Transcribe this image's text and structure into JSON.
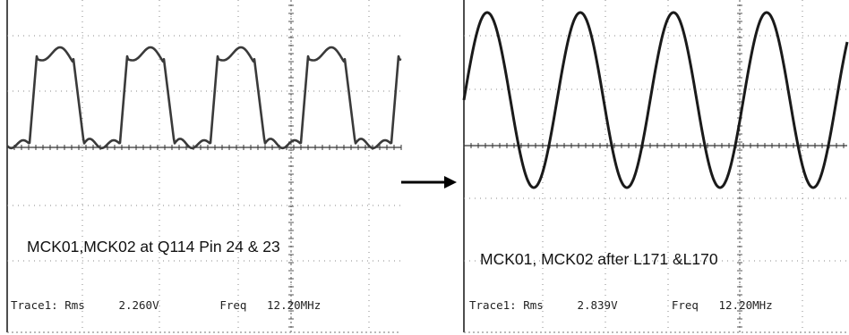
{
  "chart_data": [
    {
      "type": "line",
      "waveform": "square-ish",
      "caption": "MCK01,MCK02 at Q114 Pin 24 & 23",
      "readout": {
        "trace_label": "Trace1:",
        "rms_label": "Rms",
        "rms_value": "2.260V",
        "freq_label": "Freq",
        "freq_value": "12.20MHz"
      },
      "cycles_visible": 4.3,
      "grid": true,
      "stroke": "#3a3a3a"
    },
    {
      "type": "line",
      "waveform": "sine",
      "caption": "MCK01, MCK02 after L171 &L170",
      "readout": {
        "trace_label": "Trace1:",
        "rms_label": "Rms",
        "rms_value": "2.839V",
        "freq_label": "Freq",
        "freq_value": "12.20MHz"
      },
      "cycles_visible": 4.1,
      "grid": true,
      "stroke": "#1a1a1a"
    }
  ],
  "arrow": {
    "direction": "right",
    "color": "#000000"
  }
}
